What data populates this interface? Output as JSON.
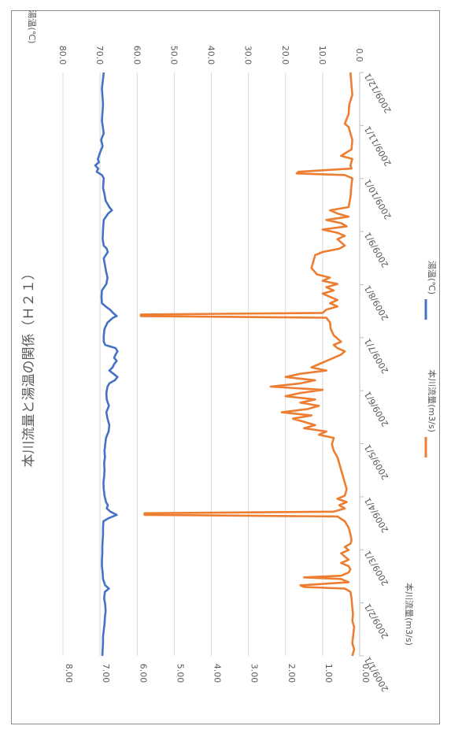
{
  "chart_data": {
    "type": "line",
    "orientation": "rotated-90-clockwise",
    "title": "本川流量と湯温の関係（Ｈ２１）",
    "x_axis": {
      "tick_labels": [
        "2009/1/1",
        "2009/2/1",
        "2009/3/1",
        "2009/4/1",
        "2009/5/1",
        "2009/6/1",
        "2009/7/1",
        "2009/8/1",
        "2009/9/1",
        "2009/10/1",
        "2009/11/1",
        "2009/12/1"
      ]
    },
    "y_left": {
      "label": "本川流量(m3/s)",
      "range": [
        0,
        8
      ],
      "ticks": [
        "0.00",
        "1.00",
        "2.00",
        "3.00",
        "4.00",
        "5.00",
        "6.00",
        "7.00",
        "8.00"
      ]
    },
    "y_right": {
      "label": "湯温(℃)",
      "range": [
        0,
        80
      ],
      "ticks": [
        "0.0",
        "10.0",
        "20.0",
        "30.0",
        "40.0",
        "50.0",
        "60.0",
        "70.0",
        "80.0"
      ]
    },
    "grid": true,
    "legend_position": "bottom",
    "series": [
      {
        "name": "本川流量(m3/s)",
        "axis": "left",
        "color": "#ED7D31",
        "points": [
          [
            0,
            0.25
          ],
          [
            8,
            0.22
          ],
          [
            14,
            0.2
          ],
          [
            20,
            0.28
          ],
          [
            26,
            0.3
          ],
          [
            32,
            0.4
          ],
          [
            34,
            0.3
          ],
          [
            38,
            0.25
          ],
          [
            42,
            0.2
          ],
          [
            48,
            0.22
          ],
          [
            52,
            0.5
          ],
          [
            54,
            0.2
          ],
          [
            58,
            0.25
          ],
          [
            60,
            0.22
          ],
          [
            62,
            1.65
          ],
          [
            63,
            1.7
          ],
          [
            64,
            0.4
          ],
          [
            66,
            0.2
          ],
          [
            72,
            0.23
          ],
          [
            78,
            0.25
          ],
          [
            84,
            0.3
          ],
          [
            86,
            0.8
          ],
          [
            88,
            0.6
          ],
          [
            90,
            0.3
          ],
          [
            92,
            0.9
          ],
          [
            94,
            0.5
          ],
          [
            96,
            0.35
          ],
          [
            98,
            1.0
          ],
          [
            100,
            0.6
          ],
          [
            102,
            0.4
          ],
          [
            104,
            0.6
          ],
          [
            106,
            0.5
          ],
          [
            108,
            0.4
          ],
          [
            110,
            0.55
          ],
          [
            112,
            1.0
          ],
          [
            114,
            1.2
          ],
          [
            118,
            1.25
          ],
          [
            122,
            1.3
          ],
          [
            126,
            1.15
          ],
          [
            128,
            0.8
          ],
          [
            130,
            1.0
          ],
          [
            132,
            0.6
          ],
          [
            134,
            0.9
          ],
          [
            136,
            0.7
          ],
          [
            138,
            1.0
          ],
          [
            140,
            0.8
          ],
          [
            142,
            0.6
          ],
          [
            144,
            0.8
          ],
          [
            146,
            0.6
          ],
          [
            148,
            0.9
          ],
          [
            150,
            1.0
          ],
          [
            151,
            5.9
          ],
          [
            152,
            5.9
          ],
          [
            153,
            0.9
          ],
          [
            156,
            0.8
          ],
          [
            160,
            0.78
          ],
          [
            164,
            0.7
          ],
          [
            168,
            0.5
          ],
          [
            170,
            0.7
          ],
          [
            172,
            0.6
          ],
          [
            174,
            0.4
          ],
          [
            176,
            0.5
          ],
          [
            178,
            0.7
          ],
          [
            180,
            0.9
          ],
          [
            182,
            1.1
          ],
          [
            184,
            1.3
          ],
          [
            186,
            0.9
          ],
          [
            188,
            1.6
          ],
          [
            190,
            2.0
          ],
          [
            192,
            1.2
          ],
          [
            194,
            1.6
          ],
          [
            196,
            2.4
          ],
          [
            198,
            1.0
          ],
          [
            200,
            1.6
          ],
          [
            202,
            2.0
          ],
          [
            204,
            1.2
          ],
          [
            206,
            1.6
          ],
          [
            208,
            1.1
          ],
          [
            210,
            1.4
          ],
          [
            212,
            2.1
          ],
          [
            214,
            1.3
          ],
          [
            216,
            1.8
          ],
          [
            218,
            1.5
          ],
          [
            220,
            1.2
          ],
          [
            222,
            1.5
          ],
          [
            224,
            0.9
          ],
          [
            226,
            1.1
          ],
          [
            228,
            0.7
          ],
          [
            232,
            0.75
          ],
          [
            236,
            0.7
          ],
          [
            240,
            0.6
          ],
          [
            244,
            0.55
          ],
          [
            248,
            0.5
          ],
          [
            252,
            0.45
          ],
          [
            256,
            0.4
          ],
          [
            260,
            0.35
          ],
          [
            264,
            0.4
          ],
          [
            266,
            0.6
          ],
          [
            268,
            0.35
          ],
          [
            270,
            0.55
          ],
          [
            272,
            0.4
          ],
          [
            274,
            0.7
          ],
          [
            275,
            5.8
          ],
          [
            276,
            5.8
          ],
          [
            277,
            0.6
          ],
          [
            280,
            0.4
          ],
          [
            284,
            0.3
          ],
          [
            288,
            0.25
          ],
          [
            292,
            0.22
          ],
          [
            294,
            0.25
          ],
          [
            296,
            0.4
          ],
          [
            298,
            0.3
          ],
          [
            300,
            0.5
          ],
          [
            302,
            0.4
          ],
          [
            304,
            0.3
          ],
          [
            306,
            0.5
          ],
          [
            308,
            0.3
          ],
          [
            310,
            0.25
          ],
          [
            312,
            0.3
          ],
          [
            314,
            0.5
          ],
          [
            315,
            1.5
          ],
          [
            316,
            0.5
          ],
          [
            318,
            0.3
          ],
          [
            320,
            1.6
          ],
          [
            321,
            1.5
          ],
          [
            322,
            0.4
          ],
          [
            324,
            0.25
          ],
          [
            328,
            0.22
          ],
          [
            334,
            0.2
          ],
          [
            338,
            0.18
          ],
          [
            342,
            0.2
          ],
          [
            346,
            0.15
          ],
          [
            350,
            0.17
          ],
          [
            356,
            0.2
          ],
          [
            360,
            0.15
          ],
          [
            364,
            0.2
          ]
        ]
      },
      {
        "name": "湯温(℃)",
        "axis": "right",
        "color": "#4472C4",
        "points": [
          [
            0,
            69
          ],
          [
            10,
            69.5
          ],
          [
            20,
            69.2
          ],
          [
            30,
            69.5
          ],
          [
            38,
            69
          ],
          [
            42,
            69.7
          ],
          [
            46,
            69.3
          ],
          [
            50,
            70.0
          ],
          [
            54,
            70.6
          ],
          [
            56,
            70.3
          ],
          [
            58,
            71.3
          ],
          [
            60,
            70.5
          ],
          [
            62,
            70.9
          ],
          [
            64,
            69.5
          ],
          [
            66,
            69.0
          ],
          [
            72,
            69.2
          ],
          [
            76,
            68.8
          ],
          [
            80,
            68.5
          ],
          [
            84,
            67.5
          ],
          [
            86,
            66.8
          ],
          [
            88,
            67.8
          ],
          [
            92,
            69.0
          ],
          [
            98,
            69.2
          ],
          [
            104,
            69.3
          ],
          [
            108,
            69.0
          ],
          [
            110,
            68.2
          ],
          [
            112,
            67.9
          ],
          [
            116,
            69.0
          ],
          [
            120,
            68.7
          ],
          [
            124,
            68.4
          ],
          [
            128,
            68.0
          ],
          [
            132,
            68.3
          ],
          [
            136,
            69.5
          ],
          [
            140,
            69.6
          ],
          [
            144,
            69.5
          ],
          [
            146,
            68.5
          ],
          [
            148,
            67.3
          ],
          [
            150,
            66.5
          ],
          [
            152,
            65.5
          ],
          [
            153,
            66.5
          ],
          [
            156,
            68.0
          ],
          [
            160,
            68.8
          ],
          [
            164,
            69.0
          ],
          [
            168,
            69.0
          ],
          [
            170,
            68.6
          ],
          [
            172,
            65.8
          ],
          [
            174,
            65.3
          ],
          [
            176,
            65.8
          ],
          [
            178,
            66.2
          ],
          [
            180,
            65.5
          ],
          [
            182,
            66.2
          ],
          [
            184,
            66.6
          ],
          [
            186,
            67.5
          ],
          [
            188,
            66.4
          ],
          [
            190,
            65.3
          ],
          [
            192,
            66.0
          ],
          [
            194,
            67.5
          ],
          [
            196,
            68.0
          ],
          [
            200,
            68.3
          ],
          [
            204,
            68.2
          ],
          [
            208,
            67.6
          ],
          [
            212,
            68.3
          ],
          [
            216,
            68.0
          ],
          [
            220,
            67.5
          ],
          [
            224,
            67.7
          ],
          [
            228,
            68.4
          ],
          [
            232,
            68.6
          ],
          [
            236,
            68.8
          ],
          [
            240,
            68.7
          ],
          [
            244,
            68.9
          ],
          [
            248,
            68.8
          ],
          [
            252,
            68.9
          ],
          [
            256,
            69.1
          ],
          [
            260,
            69.0
          ],
          [
            264,
            68.8
          ],
          [
            268,
            68.4
          ],
          [
            270,
            67.9
          ],
          [
            272,
            68.2
          ],
          [
            274,
            67.2
          ],
          [
            276,
            65.5
          ],
          [
            278,
            67.6
          ],
          [
            280,
            69.1
          ],
          [
            284,
            69.2
          ],
          [
            288,
            69.2
          ],
          [
            292,
            69.3
          ],
          [
            296,
            69.4
          ],
          [
            300,
            69.4
          ],
          [
            304,
            69.5
          ],
          [
            308,
            69.5
          ],
          [
            312,
            69.3
          ],
          [
            316,
            69.2
          ],
          [
            320,
            68.6
          ],
          [
            322,
            67.6
          ],
          [
            324,
            68.7
          ],
          [
            328,
            68.9
          ],
          [
            332,
            68.6
          ],
          [
            336,
            68.5
          ],
          [
            340,
            68.7
          ],
          [
            344,
            68.8
          ],
          [
            348,
            69.0
          ],
          [
            352,
            69.2
          ],
          [
            356,
            69.2
          ],
          [
            360,
            69.3
          ],
          [
            364,
            69.4
          ]
        ]
      }
    ]
  }
}
